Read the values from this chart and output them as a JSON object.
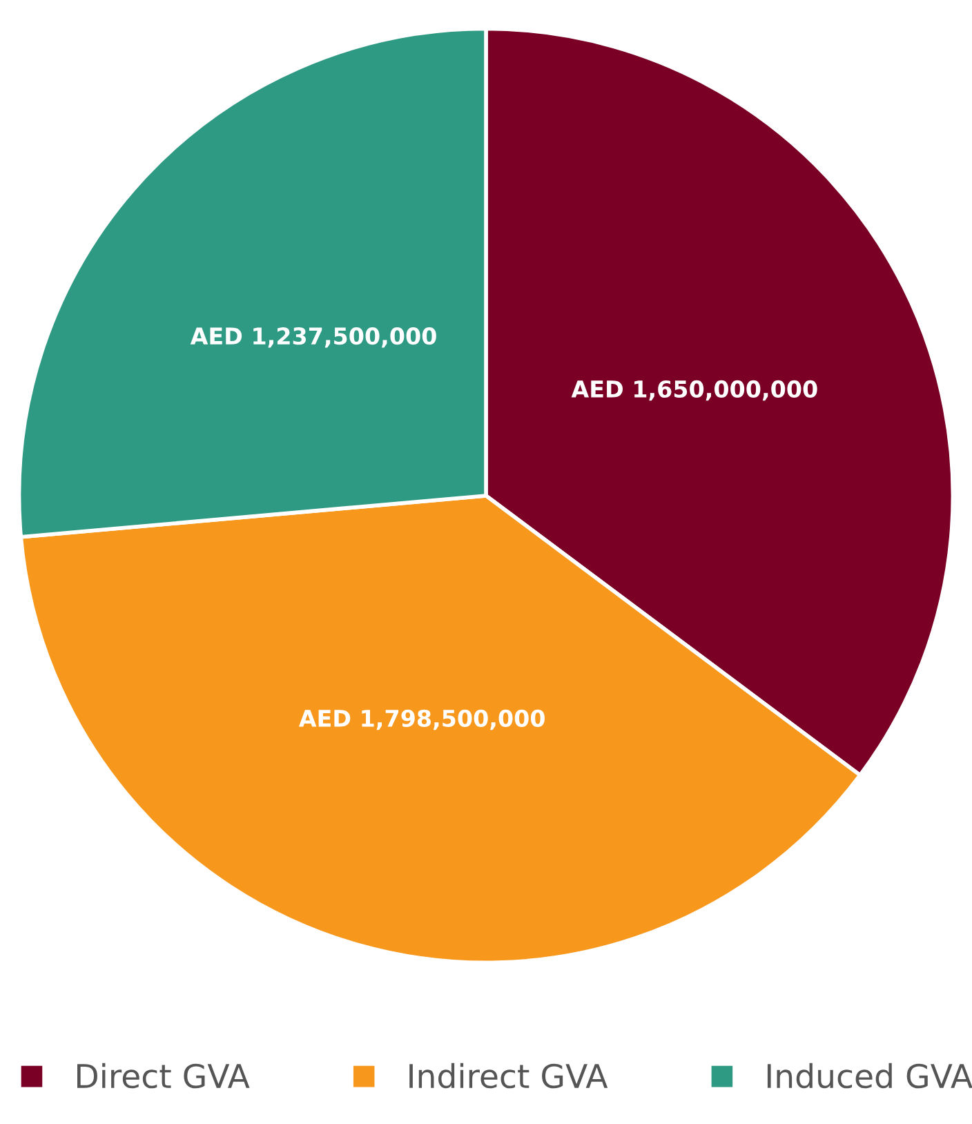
{
  "chart_data": {
    "type": "pie",
    "categories": [
      "Direct GVA",
      "Indirect GVA",
      "Induced GVA"
    ],
    "values": [
      1650000000,
      1798500000,
      1237500000
    ],
    "colors": [
      "#7a0026",
      "#f7981d",
      "#2f9a84"
    ],
    "value_labels": [
      "AED 1,650,000,000",
      "AED 1,798,500,000",
      "AED 1,237,500,000"
    ],
    "legend": "bottom"
  }
}
